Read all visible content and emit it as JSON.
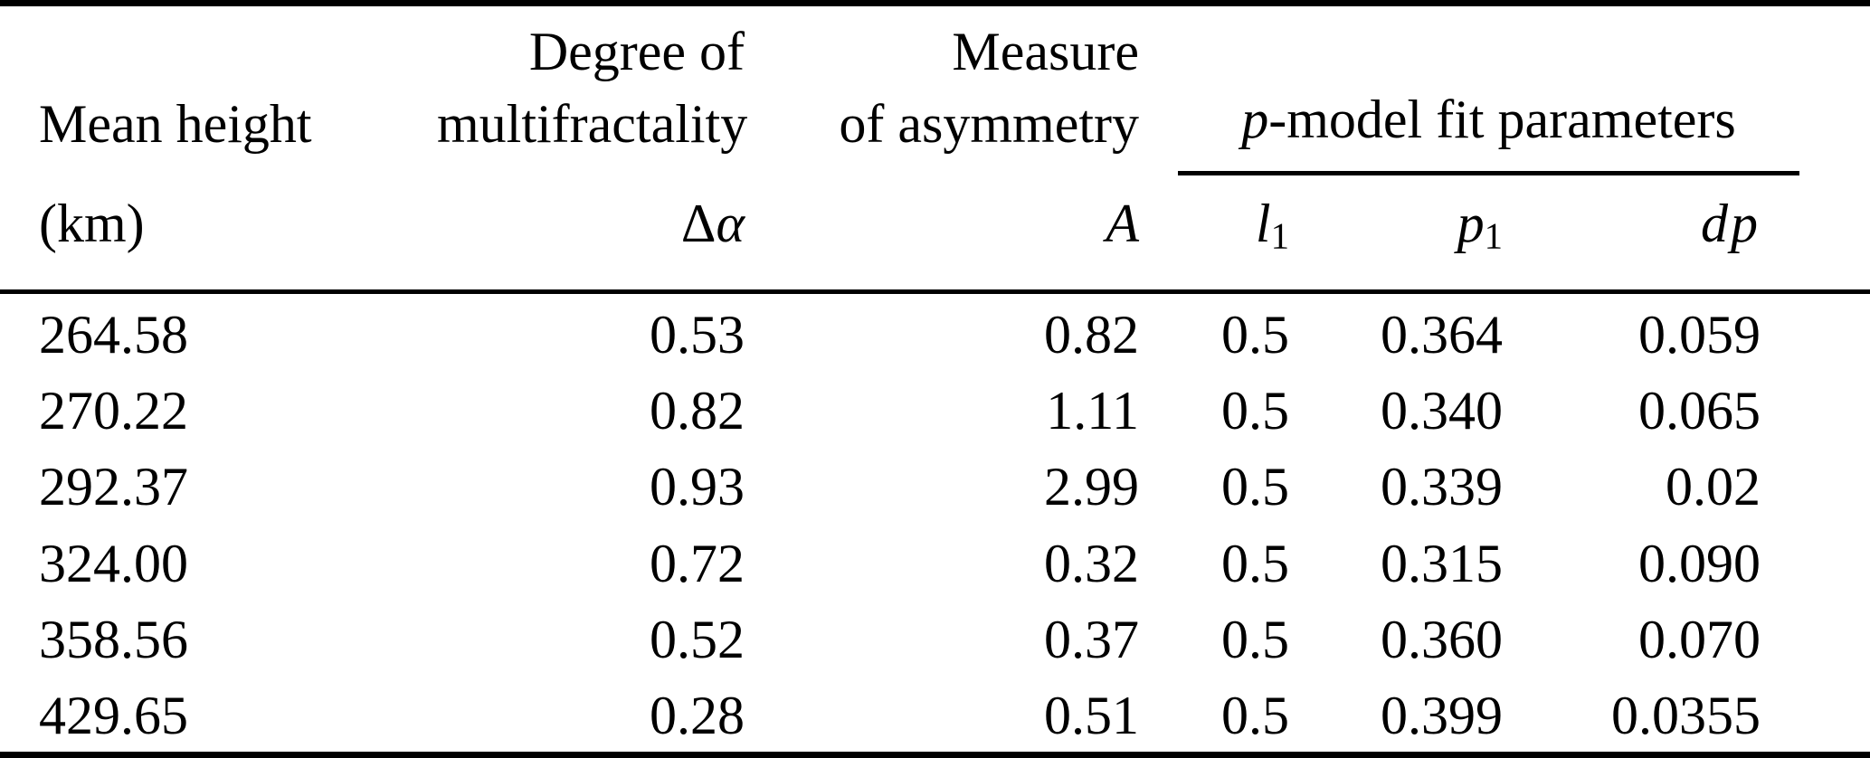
{
  "table": {
    "columns": {
      "mean_height": {
        "title": "Mean height",
        "unit": "(km)"
      },
      "degree_of_multifractality": {
        "title_line1": "Degree of",
        "title_line2": "multifractality",
        "symbol_delta": "Δ",
        "symbol_alpha": "α"
      },
      "measure_of_asymmetry": {
        "title_line1": "Measure",
        "title_line2": "of asymmetry",
        "symbol": "A"
      },
      "p_model_group": {
        "title_italic": "p",
        "title_rest": "-model fit parameters",
        "sub_columns": [
          {
            "base": "l",
            "sub": "1"
          },
          {
            "base": "p",
            "sub": "1"
          },
          {
            "base": "dp",
            "sub": ""
          }
        ]
      }
    },
    "rows": [
      [
        "264.58",
        "0.53",
        "0.82",
        "0.5",
        "0.364",
        "0.059"
      ],
      [
        "270.22",
        "0.82",
        "1.11",
        "0.5",
        "0.340",
        "0.065"
      ],
      [
        "292.37",
        "0.93",
        "2.99",
        "0.5",
        "0.339",
        "0.02"
      ],
      [
        "324.00",
        "0.72",
        "0.32",
        "0.5",
        "0.315",
        "0.090"
      ],
      [
        "358.56",
        "0.52",
        "0.37",
        "0.5",
        "0.360",
        "0.070"
      ],
      [
        "429.65",
        "0.28",
        "0.51",
        "0.5",
        "0.399",
        "0.0355"
      ]
    ],
    "colors": {
      "text": "#000000",
      "background": "#ffffff",
      "rule": "#000000"
    }
  }
}
